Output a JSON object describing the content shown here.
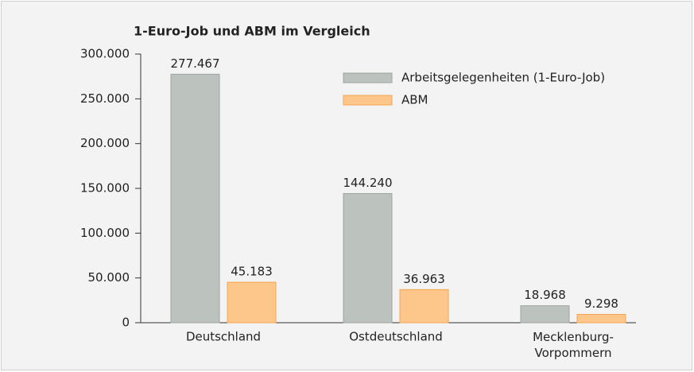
{
  "chart_data": {
    "type": "bar",
    "title": "1-Euro-Job und ABM im Vergleich",
    "categories": [
      "Deutschland",
      "Ostdeutschland",
      "Mecklenburg-\nVorpommern"
    ],
    "series": [
      {
        "name": "Arbeitsgelegenheiten (1-Euro-Job)",
        "color": "#bcc3bf",
        "values": [
          277467,
          144240,
          18968
        ],
        "value_labels": [
          "277.467",
          "144.240",
          "18.968"
        ]
      },
      {
        "name": "ABM",
        "color": "#fdc78b",
        "values": [
          45183,
          36963,
          9298
        ],
        "value_labels": [
          "45.183",
          "36.963",
          "9.298"
        ]
      }
    ],
    "ylim": [
      0,
      300000
    ],
    "yticks": [
      0,
      {
        "value": 50000,
        "label": "50.000"
      },
      {
        "value": 100000,
        "label": "100.000"
      },
      {
        "value": 150000,
        "label": "150.000"
      },
      {
        "value": 200000,
        "label": "200.000"
      },
      {
        "value": 250000,
        "label": "250.000"
      },
      {
        "value": 300000,
        "label": "300.000"
      }
    ],
    "legend": "top-right"
  }
}
